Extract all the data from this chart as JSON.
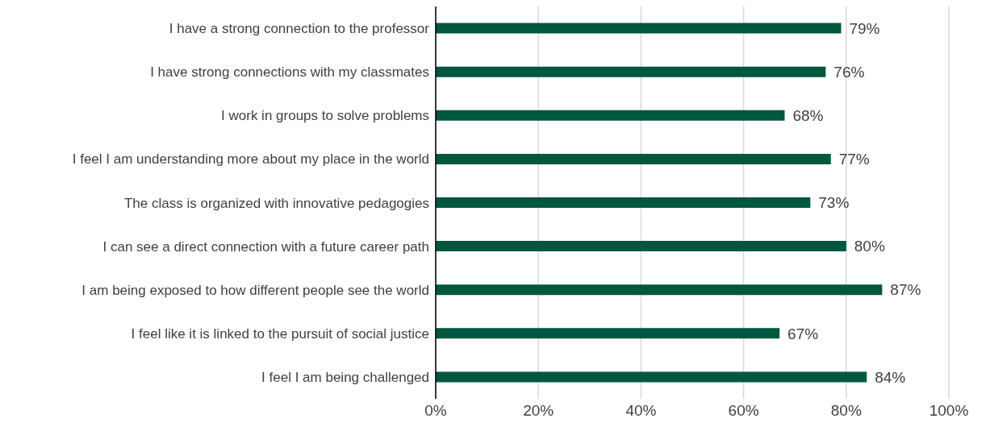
{
  "chart_data": {
    "type": "bar",
    "orientation": "horizontal",
    "categories": [
      "I have a strong connection to the professor",
      "I have strong connections with my classmates",
      "I work in groups to solve problems",
      "I feel I am understanding more about my place in the world",
      "The class is organized with innovative pedagogies",
      "I can see a direct connection with a future career path",
      "I am being exposed to how different people see the world",
      "I feel like it is linked to the pursuit of social justice",
      "I feel I am being challenged"
    ],
    "values": [
      79,
      76,
      68,
      77,
      73,
      80,
      87,
      67,
      84
    ],
    "value_labels": [
      "79%",
      "76%",
      "68%",
      "77%",
      "73%",
      "80%",
      "87%",
      "67%",
      "84%"
    ],
    "color": "#00573f",
    "xlim": [
      0,
      100
    ],
    "xticks": [
      {
        "value": 0,
        "label": "0%"
      },
      {
        "value": 20,
        "label": "20%"
      },
      {
        "value": 40,
        "label": "40%"
      },
      {
        "value": 60,
        "label": "60%"
      },
      {
        "value": 80,
        "label": "80%"
      },
      {
        "value": 100,
        "label": "100%"
      }
    ],
    "grid": "x"
  }
}
